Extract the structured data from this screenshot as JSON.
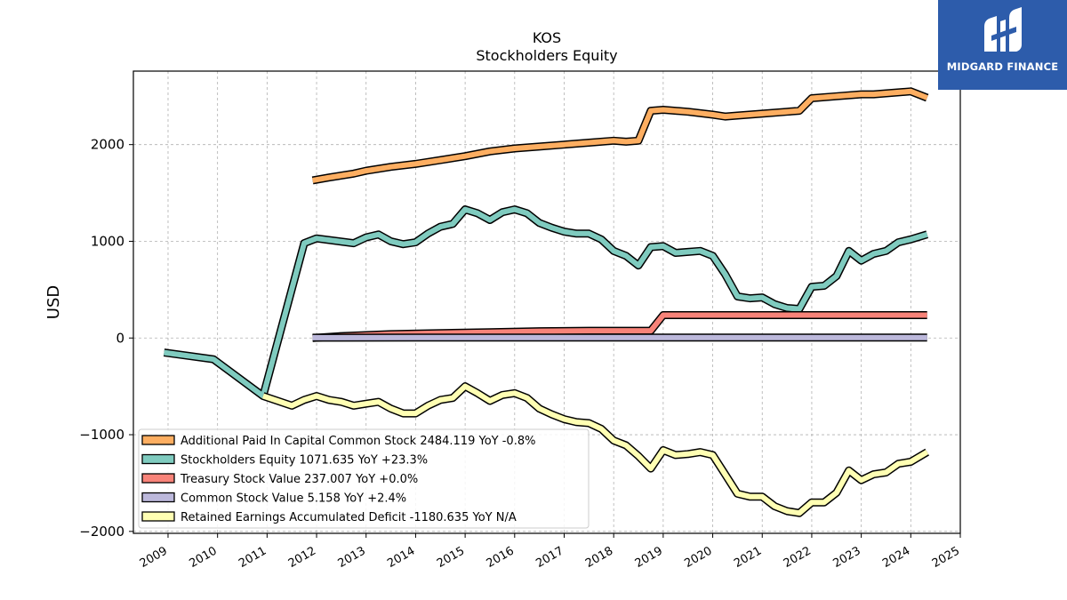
{
  "chart_data": {
    "type": "line",
    "title": "KOS",
    "subtitle": "Stockholders  Equity",
    "xlabel": "",
    "ylabel": "USD",
    "xlim": [
      2008.3,
      2025.0
    ],
    "ylim": [
      -2020,
      2760
    ],
    "x_ticks": [
      2009,
      2010,
      2011,
      2012,
      2013,
      2014,
      2015,
      2016,
      2017,
      2018,
      2019,
      2020,
      2021,
      2022,
      2023,
      2024,
      2025
    ],
    "y_ticks": [
      -2000,
      -1000,
      0,
      1000,
      2000
    ],
    "y_tick_labels": [
      "−2000",
      "−1000",
      "0",
      "1000",
      "2000"
    ],
    "grid": true,
    "legend_position": "lower-left",
    "series": [
      {
        "name": "Additional Paid In Capital Common Stock",
        "legend": "Additional Paid In Capital Common Stock  2484.119 YoY -0.8%",
        "color": "#fdae61",
        "points": [
          [
            2011.92,
            1630
          ],
          [
            2012.25,
            1660
          ],
          [
            2012.75,
            1700
          ],
          [
            2013.0,
            1730
          ],
          [
            2013.5,
            1770
          ],
          [
            2014.0,
            1800
          ],
          [
            2014.5,
            1840
          ],
          [
            2015.0,
            1880
          ],
          [
            2015.5,
            1930
          ],
          [
            2016.0,
            1960
          ],
          [
            2016.5,
            1980
          ],
          [
            2017.0,
            2000
          ],
          [
            2017.5,
            2020
          ],
          [
            2018.0,
            2040
          ],
          [
            2018.25,
            2030
          ],
          [
            2018.5,
            2040
          ],
          [
            2018.75,
            2350
          ],
          [
            2019.0,
            2360
          ],
          [
            2019.5,
            2340
          ],
          [
            2020.0,
            2310
          ],
          [
            2020.25,
            2290
          ],
          [
            2020.5,
            2300
          ],
          [
            2021.0,
            2320
          ],
          [
            2021.5,
            2340
          ],
          [
            2021.75,
            2350
          ],
          [
            2022.0,
            2480
          ],
          [
            2022.5,
            2500
          ],
          [
            2023.0,
            2520
          ],
          [
            2023.25,
            2520
          ],
          [
            2023.5,
            2530
          ],
          [
            2024.0,
            2550
          ],
          [
            2024.33,
            2484
          ]
        ]
      },
      {
        "name": "Stockholders Equity",
        "legend": "Stockholders Equity  1071.635 YoY +23.3%",
        "color": "#7fcbbf",
        "points": [
          [
            2008.92,
            -150
          ],
          [
            2009.92,
            -220
          ],
          [
            2010.92,
            -600
          ],
          [
            2011.75,
            980
          ],
          [
            2012.0,
            1030
          ],
          [
            2012.75,
            980
          ],
          [
            2013.0,
            1040
          ],
          [
            2013.25,
            1070
          ],
          [
            2013.5,
            1000
          ],
          [
            2013.75,
            970
          ],
          [
            2014.0,
            990
          ],
          [
            2014.25,
            1080
          ],
          [
            2014.5,
            1150
          ],
          [
            2014.75,
            1180
          ],
          [
            2015.0,
            1330
          ],
          [
            2015.25,
            1290
          ],
          [
            2015.5,
            1220
          ],
          [
            2015.75,
            1300
          ],
          [
            2016.0,
            1330
          ],
          [
            2016.25,
            1290
          ],
          [
            2016.5,
            1190
          ],
          [
            2016.75,
            1140
          ],
          [
            2017.0,
            1100
          ],
          [
            2017.25,
            1080
          ],
          [
            2017.5,
            1080
          ],
          [
            2017.75,
            1020
          ],
          [
            2018.0,
            900
          ],
          [
            2018.25,
            850
          ],
          [
            2018.5,
            750
          ],
          [
            2018.75,
            940
          ],
          [
            2019.0,
            950
          ],
          [
            2019.25,
            880
          ],
          [
            2019.5,
            890
          ],
          [
            2019.75,
            900
          ],
          [
            2020.0,
            850
          ],
          [
            2020.25,
            660
          ],
          [
            2020.5,
            430
          ],
          [
            2020.75,
            410
          ],
          [
            2021.0,
            420
          ],
          [
            2021.25,
            350
          ],
          [
            2021.5,
            310
          ],
          [
            2021.75,
            300
          ],
          [
            2022.0,
            530
          ],
          [
            2022.25,
            540
          ],
          [
            2022.5,
            640
          ],
          [
            2022.75,
            900
          ],
          [
            2023.0,
            800
          ],
          [
            2023.25,
            870
          ],
          [
            2023.5,
            900
          ],
          [
            2023.75,
            990
          ],
          [
            2024.0,
            1020
          ],
          [
            2024.33,
            1071
          ]
        ]
      },
      {
        "name": "Treasury Stock Value",
        "legend": "Treasury Stock Value  237.007 YoY +0.0%",
        "color": "#f88379",
        "points": [
          [
            2011.92,
            0
          ],
          [
            2012.5,
            20
          ],
          [
            2013.5,
            40
          ],
          [
            2014.5,
            50
          ],
          [
            2015.5,
            60
          ],
          [
            2016.5,
            70
          ],
          [
            2017.5,
            75
          ],
          [
            2018.75,
            75
          ],
          [
            2019.0,
            237
          ],
          [
            2024.33,
            237
          ]
        ]
      },
      {
        "name": "Common Stock Value",
        "legend": "Common Stock Value  5.158 YoY +2.4%",
        "color": "#bcb8db",
        "points": [
          [
            2011.92,
            3
          ],
          [
            2014.0,
            4
          ],
          [
            2017.0,
            4.5
          ],
          [
            2020.0,
            5
          ],
          [
            2024.33,
            5.158
          ]
        ]
      },
      {
        "name": "Retained Earnings Accumulated Deficit",
        "legend": "Retained Earnings Accumulated Deficit  -1180.635 YoY N/A",
        "color": "#ffffb3",
        "points": [
          [
            2010.92,
            -600
          ],
          [
            2011.5,
            -700
          ],
          [
            2011.75,
            -640
          ],
          [
            2012.0,
            -600
          ],
          [
            2012.25,
            -640
          ],
          [
            2012.5,
            -660
          ],
          [
            2012.75,
            -700
          ],
          [
            2013.0,
            -680
          ],
          [
            2013.25,
            -660
          ],
          [
            2013.5,
            -730
          ],
          [
            2013.75,
            -780
          ],
          [
            2014.0,
            -780
          ],
          [
            2014.25,
            -700
          ],
          [
            2014.5,
            -640
          ],
          [
            2014.75,
            -620
          ],
          [
            2015.0,
            -500
          ],
          [
            2015.25,
            -570
          ],
          [
            2015.5,
            -650
          ],
          [
            2015.75,
            -590
          ],
          [
            2016.0,
            -570
          ],
          [
            2016.25,
            -620
          ],
          [
            2016.5,
            -730
          ],
          [
            2016.75,
            -790
          ],
          [
            2017.0,
            -840
          ],
          [
            2017.25,
            -870
          ],
          [
            2017.5,
            -880
          ],
          [
            2017.75,
            -940
          ],
          [
            2018.0,
            -1060
          ],
          [
            2018.25,
            -1110
          ],
          [
            2018.5,
            -1220
          ],
          [
            2018.75,
            -1350
          ],
          [
            2019.0,
            -1160
          ],
          [
            2019.25,
            -1210
          ],
          [
            2019.5,
            -1200
          ],
          [
            2019.75,
            -1180
          ],
          [
            2020.0,
            -1210
          ],
          [
            2020.25,
            -1410
          ],
          [
            2020.5,
            -1610
          ],
          [
            2020.75,
            -1640
          ],
          [
            2021.0,
            -1640
          ],
          [
            2021.25,
            -1740
          ],
          [
            2021.5,
            -1790
          ],
          [
            2021.75,
            -1810
          ],
          [
            2022.0,
            -1700
          ],
          [
            2022.25,
            -1700
          ],
          [
            2022.5,
            -1600
          ],
          [
            2022.75,
            -1370
          ],
          [
            2023.0,
            -1470
          ],
          [
            2023.25,
            -1410
          ],
          [
            2023.5,
            -1390
          ],
          [
            2023.75,
            -1300
          ],
          [
            2024.0,
            -1280
          ],
          [
            2024.33,
            -1180
          ]
        ]
      }
    ]
  },
  "logo": {
    "text": "MIDGARD FINANCE"
  }
}
